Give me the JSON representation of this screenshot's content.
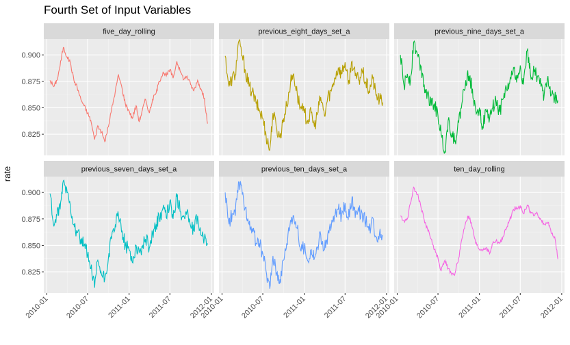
{
  "chart_data": {
    "type": "line",
    "title": "Fourth Set of Input Variables",
    "xlabel": "",
    "ylabel": "rate",
    "layout": "facet grid 2 rows x 3 columns",
    "grid": true,
    "legend": "none",
    "x_range": [
      "2010-01-01",
      "2011-12-31"
    ],
    "x_ticks": [
      "2010-01",
      "2010-07",
      "2011-01",
      "2011-07",
      "2012-01"
    ],
    "ylim": [
      0.805,
      0.915
    ],
    "y_ticks": [
      "0.825",
      "0.850",
      "0.875",
      "0.900"
    ],
    "x": [
      "2010-01-15",
      "2010-02-01",
      "2010-02-15",
      "2010-03-01",
      "2010-03-15",
      "2010-04-01",
      "2010-04-15",
      "2010-05-01",
      "2010-05-15",
      "2010-06-01",
      "2010-06-15",
      "2010-07-01",
      "2010-07-15",
      "2010-08-01",
      "2010-08-15",
      "2010-09-01",
      "2010-09-15",
      "2010-10-01",
      "2010-10-15",
      "2010-11-01",
      "2010-11-15",
      "2010-12-01",
      "2010-12-15",
      "2011-01-01",
      "2011-01-15",
      "2011-02-01",
      "2011-02-15",
      "2011-03-01",
      "2011-03-15",
      "2011-04-01",
      "2011-04-15",
      "2011-05-01",
      "2011-05-15",
      "2011-06-01",
      "2011-06-15",
      "2011-07-01",
      "2011-07-15",
      "2011-08-01",
      "2011-08-15",
      "2011-09-01",
      "2011-09-15",
      "2011-10-01",
      "2011-10-15",
      "2011-11-01",
      "2011-11-15",
      "2011-12-01",
      "2011-12-15"
    ],
    "series": [
      {
        "name": "five_day_rolling",
        "color": "#F8766D",
        "values": [
          0.876,
          0.87,
          0.876,
          0.89,
          0.907,
          0.898,
          0.893,
          0.876,
          0.87,
          0.858,
          0.852,
          0.845,
          0.838,
          0.82,
          0.833,
          0.827,
          0.818,
          0.832,
          0.848,
          0.866,
          0.881,
          0.868,
          0.854,
          0.847,
          0.84,
          0.852,
          0.837,
          0.848,
          0.858,
          0.845,
          0.858,
          0.864,
          0.875,
          0.884,
          0.88,
          0.886,
          0.878,
          0.894,
          0.885,
          0.877,
          0.88,
          0.872,
          0.866,
          0.876,
          0.868,
          0.859,
          0.835
        ]
      },
      {
        "name": "previous_eight_days_set_a",
        "color": "#B79F00",
        "values": [
          0.899,
          0.87,
          0.878,
          0.881,
          0.912,
          0.899,
          0.885,
          0.87,
          0.865,
          0.854,
          0.848,
          0.84,
          0.825,
          0.81,
          0.845,
          0.83,
          0.822,
          0.84,
          0.852,
          0.874,
          0.882,
          0.862,
          0.85,
          0.845,
          0.838,
          0.845,
          0.832,
          0.845,
          0.86,
          0.842,
          0.86,
          0.866,
          0.878,
          0.888,
          0.882,
          0.893,
          0.872,
          0.894,
          0.88,
          0.876,
          0.885,
          0.874,
          0.866,
          0.878,
          0.862,
          0.858,
          0.855
        ]
      },
      {
        "name": "previous_nine_days_set_a",
        "color": "#00BA38",
        "values": [
          0.9,
          0.87,
          0.882,
          0.876,
          0.912,
          0.9,
          0.89,
          0.872,
          0.864,
          0.852,
          0.854,
          0.842,
          0.825,
          0.809,
          0.838,
          0.826,
          0.819,
          0.836,
          0.854,
          0.876,
          0.88,
          0.868,
          0.848,
          0.85,
          0.832,
          0.846,
          0.84,
          0.85,
          0.857,
          0.846,
          0.858,
          0.868,
          0.873,
          0.888,
          0.874,
          0.89,
          0.872,
          0.904,
          0.882,
          0.884,
          0.88,
          0.87,
          0.862,
          0.88,
          0.862,
          0.86,
          0.857
        ]
      },
      {
        "name": "previous_seven_days_set_a",
        "color": "#00BFC4",
        "values": [
          0.899,
          0.868,
          0.878,
          0.884,
          0.911,
          0.9,
          0.888,
          0.87,
          0.862,
          0.856,
          0.85,
          0.841,
          0.828,
          0.81,
          0.836,
          0.822,
          0.818,
          0.838,
          0.856,
          0.87,
          0.878,
          0.864,
          0.85,
          0.846,
          0.834,
          0.85,
          0.843,
          0.848,
          0.856,
          0.848,
          0.862,
          0.87,
          0.876,
          0.886,
          0.876,
          0.892,
          0.875,
          0.896,
          0.882,
          0.878,
          0.882,
          0.868,
          0.864,
          0.878,
          0.86,
          0.857,
          0.852
        ]
      },
      {
        "name": "previous_ten_days_set_a",
        "color": "#619CFF",
        "values": [
          0.9,
          0.87,
          0.88,
          0.878,
          0.91,
          0.898,
          0.886,
          0.87,
          0.866,
          0.852,
          0.852,
          0.842,
          0.826,
          0.809,
          0.84,
          0.824,
          0.818,
          0.836,
          0.852,
          0.874,
          0.878,
          0.866,
          0.846,
          0.848,
          0.836,
          0.846,
          0.838,
          0.848,
          0.86,
          0.846,
          0.86,
          0.868,
          0.878,
          0.884,
          0.878,
          0.89,
          0.874,
          0.896,
          0.876,
          0.882,
          0.88,
          0.872,
          0.864,
          0.876,
          0.858,
          0.862,
          0.86
        ]
      },
      {
        "name": "ten_day_rolling",
        "color": "#F564E3",
        "values": [
          0.878,
          0.873,
          0.875,
          0.89,
          0.905,
          0.898,
          0.888,
          0.874,
          0.866,
          0.856,
          0.846,
          0.838,
          0.826,
          0.836,
          0.828,
          0.822,
          0.824,
          0.838,
          0.856,
          0.872,
          0.878,
          0.866,
          0.852,
          0.846,
          0.846,
          0.848,
          0.842,
          0.852,
          0.854,
          0.852,
          0.858,
          0.866,
          0.874,
          0.884,
          0.886,
          0.887,
          0.88,
          0.888,
          0.882,
          0.878,
          0.88,
          0.874,
          0.87,
          0.872,
          0.862,
          0.858,
          0.837
        ]
      }
    ]
  }
}
